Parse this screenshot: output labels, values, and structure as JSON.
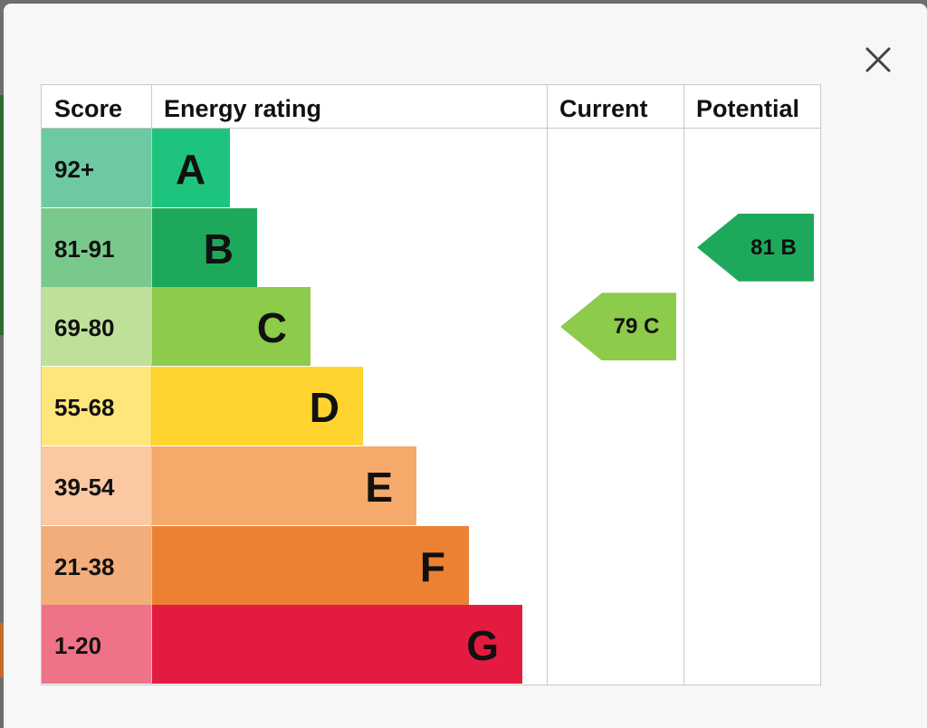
{
  "close_button": {
    "icon": "close-icon",
    "label": ""
  },
  "table": {
    "headers": {
      "score": "Score",
      "energy_rating": "Energy rating",
      "current": "Current",
      "potential": "Potential"
    }
  },
  "chart_data": {
    "type": "bar",
    "title": "",
    "categories": [
      "A",
      "B",
      "C",
      "D",
      "E",
      "F",
      "G"
    ],
    "bands": [
      {
        "letter": "A",
        "score_range": "92+",
        "color": "#1ec47e",
        "score_bg": "#6cc9a2"
      },
      {
        "letter": "B",
        "score_range": "81-91",
        "color": "#1ea85c",
        "score_bg": "#78c98b"
      },
      {
        "letter": "C",
        "score_range": "69-80",
        "color": "#8dcb4b",
        "score_bg": "#bfe09a"
      },
      {
        "letter": "D",
        "score_range": "55-68",
        "color": "#ffd42e",
        "score_bg": "#ffe67a"
      },
      {
        "letter": "E",
        "score_range": "39-54",
        "color": "#f5a96a",
        "score_bg": "#fac8a2"
      },
      {
        "letter": "F",
        "score_range": "21-38",
        "color": "#ec8134",
        "score_bg": "#f2ad7a"
      },
      {
        "letter": "G",
        "score_range": "1-20",
        "color": "#e41b40",
        "score_bg": "#ee7388"
      }
    ],
    "current": {
      "score": 79,
      "band": "C",
      "label": "79 C",
      "color": "#8dcb4b"
    },
    "potential": {
      "score": 81,
      "band": "B",
      "label": "81 B",
      "color": "#1ea85c"
    }
  }
}
